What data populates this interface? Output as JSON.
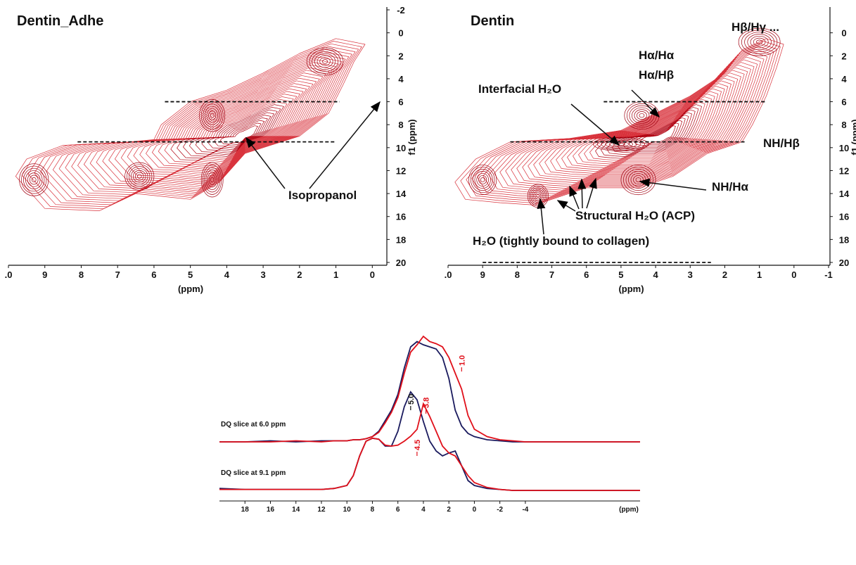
{
  "chart_data": [
    {
      "type": "contour",
      "title": "Dentin_Adhe",
      "xlabel": "(ppm)",
      "ylabel": "f1 (ppm)",
      "xlim": [
        10,
        -0.4
      ],
      "ylim": [
        -2,
        20
      ],
      "xticks": [
        {
          "value": 10,
          "label": ".0"
        },
        9,
        8,
        7,
        6,
        5,
        4,
        3,
        2,
        1,
        0
      ],
      "yticks": [
        -2,
        0,
        2,
        4,
        6,
        8,
        10,
        12,
        14,
        16,
        18,
        20
      ],
      "slice_lines": [
        {
          "y": 6,
          "x": [
            5.7,
            0.9
          ]
        },
        {
          "y": 9.5,
          "x": [
            8.1,
            1.0
          ]
        }
      ],
      "annotations": [
        "Isopropanol"
      ]
    },
    {
      "type": "contour",
      "title": "Dentin",
      "xlabel": "(ppm)",
      "ylabel": "f1 (ppm)",
      "xlim": [
        10,
        -1
      ],
      "ylim": [
        -2,
        20
      ],
      "xticks": [
        {
          "value": 10,
          "label": ".0"
        },
        9,
        8,
        7,
        6,
        5,
        4,
        3,
        2,
        1,
        0,
        -1
      ],
      "yticks": [
        0,
        2,
        4,
        6,
        8,
        10,
        12,
        14,
        16,
        18,
        20
      ],
      "slice_lines": [
        {
          "y": 6,
          "x": [
            5.5,
            0.8
          ]
        },
        {
          "y": 9.5,
          "x": [
            8.2,
            1.4
          ]
        },
        {
          "y": 20,
          "x": [
            9.0,
            2.4
          ]
        }
      ],
      "annotations": [
        "Hα/Hα",
        "Hα/Hβ",
        "Hβ/Hγ ...",
        "Interfacial H₂O",
        "NH/Hβ",
        "NH/Hα",
        "Structural H₂O (ACP)",
        "H₂O (tightly bound to collagen)"
      ]
    },
    {
      "type": "line",
      "title": "DQ slice at 6.0 ppm",
      "xlim": [
        20,
        -13
      ],
      "x": [
        20,
        18,
        16,
        14,
        12,
        11,
        10,
        9.5,
        9,
        8.5,
        8,
        7.5,
        7,
        6.5,
        6,
        5.5,
        5,
        4.5,
        4,
        3.5,
        3,
        2.5,
        2,
        1.5,
        1,
        0.5,
        0,
        -1,
        -2,
        -3,
        -4,
        -6,
        -8,
        -10,
        -13
      ],
      "series": [
        {
          "color": "#1a1a5e",
          "values": [
            0,
            0,
            1,
            0,
            1,
            1,
            1,
            2,
            2,
            3,
            5,
            10,
            20,
            30,
            45,
            70,
            90,
            95,
            92,
            90,
            88,
            80,
            60,
            30,
            15,
            8,
            5,
            2,
            1,
            0,
            0,
            0,
            0,
            0,
            0
          ]
        },
        {
          "color": "#e0101a",
          "values": [
            0,
            0,
            0,
            1,
            0,
            1,
            1,
            2,
            2,
            3,
            5,
            9,
            18,
            28,
            42,
            65,
            85,
            92,
            100,
            95,
            93,
            90,
            80,
            65,
            50,
            25,
            12,
            5,
            2,
            1,
            0,
            0,
            0,
            0,
            0
          ]
        }
      ],
      "peak_labels": [
        {
          "value": 1.0,
          "label": "1.0",
          "color": "#e0101a"
        }
      ]
    },
    {
      "type": "line",
      "title": "DQ slice at 9.1 ppm",
      "xlim": [
        20,
        -13
      ],
      "xlabel": "(ppm)",
      "xticks": [
        18,
        16,
        14,
        12,
        10,
        8,
        6,
        4,
        2,
        0,
        -2,
        -4
      ],
      "x": [
        20,
        18,
        16,
        14,
        12,
        11,
        10,
        9.5,
        9,
        8.5,
        8,
        7.5,
        7,
        6.5,
        6,
        5.5,
        5,
        4.5,
        4,
        3.5,
        3,
        2.5,
        2,
        1.5,
        1,
        0.5,
        0,
        -1,
        -2,
        -3,
        -4,
        -6,
        -8,
        -10,
        -13
      ],
      "series": [
        {
          "color": "#1a1a5e",
          "values": [
            2,
            1,
            1,
            1,
            1,
            2,
            5,
            15,
            35,
            50,
            53,
            52,
            45,
            45,
            60,
            85,
            100,
            92,
            70,
            50,
            40,
            35,
            38,
            40,
            25,
            10,
            5,
            2,
            1,
            0,
            0,
            0,
            0,
            0,
            0
          ]
        },
        {
          "color": "#e0101a",
          "values": [
            1,
            1,
            1,
            1,
            1,
            2,
            5,
            15,
            35,
            50,
            53,
            52,
            46,
            45,
            46,
            50,
            55,
            62,
            88,
            75,
            60,
            45,
            38,
            35,
            25,
            15,
            8,
            3,
            1,
            0,
            0,
            0,
            0,
            0,
            0
          ]
        }
      ],
      "peak_labels": [
        {
          "value": 5.0,
          "label": "5.0",
          "color": "#111111"
        },
        {
          "value": 3.8,
          "label": "3.8",
          "color": "#e0101a"
        },
        {
          "value": 4.5,
          "label": "4.5",
          "color": "#e0101a"
        }
      ]
    }
  ]
}
